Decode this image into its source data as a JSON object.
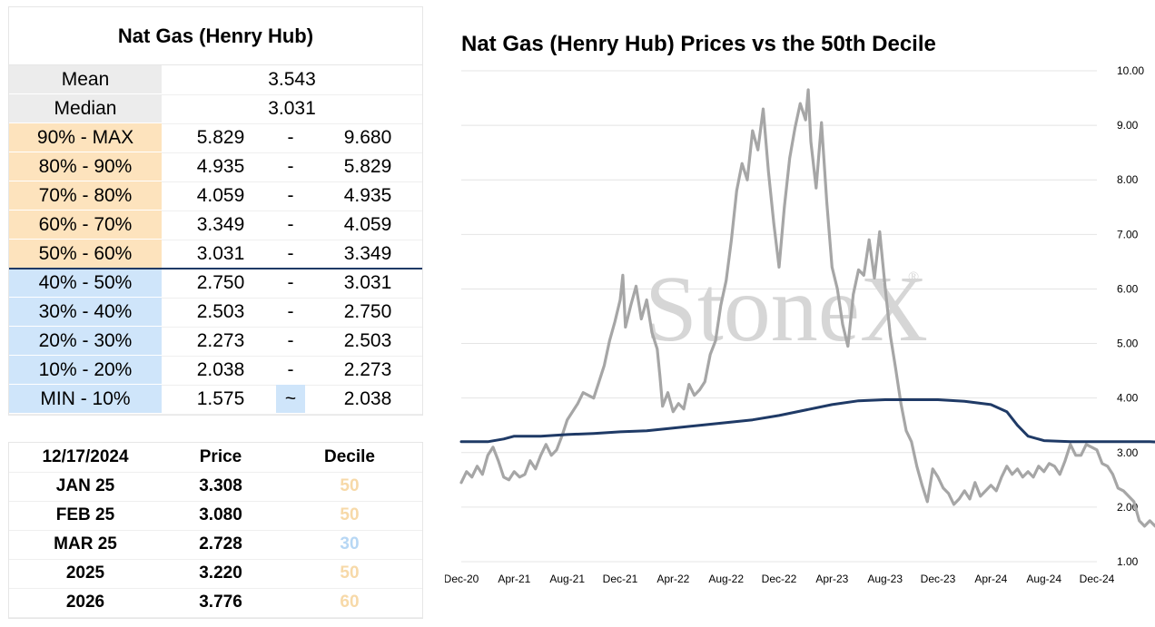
{
  "stats_table": {
    "title": "Nat Gas (Henry Hub)",
    "mean_label": "Mean",
    "mean_value": "3.543",
    "median_label": "Median",
    "median_value": "3.031",
    "deciles": [
      {
        "label": "90% - MAX",
        "low": "5.829",
        "sep": "-",
        "high": "9.680"
      },
      {
        "label": "80% - 90%",
        "low": "4.935",
        "sep": "-",
        "high": "5.829"
      },
      {
        "label": "70% - 80%",
        "low": "4.059",
        "sep": "-",
        "high": "4.935"
      },
      {
        "label": "60% - 70%",
        "low": "3.349",
        "sep": "-",
        "high": "4.059"
      },
      {
        "label": "50% - 60%",
        "low": "3.031",
        "sep": "-",
        "high": "3.349"
      },
      {
        "label": "40% - 50%",
        "low": "2.750",
        "sep": "-",
        "high": "3.031"
      },
      {
        "label": "30% - 40%",
        "low": "2.503",
        "sep": "-",
        "high": "2.750"
      },
      {
        "label": "20% - 30%",
        "low": "2.273",
        "sep": "-",
        "high": "2.503"
      },
      {
        "label": "10% - 20%",
        "low": "2.038",
        "sep": "-",
        "high": "2.273"
      },
      {
        "label": "MIN - 10%",
        "low": "1.575",
        "sep": "~",
        "high": "2.038"
      }
    ]
  },
  "price_table": {
    "headers": [
      "12/17/2024",
      "Price",
      "Decile"
    ],
    "rows": [
      {
        "contract": "JAN 25",
        "price": "3.308",
        "decile": "50"
      },
      {
        "contract": "FEB 25",
        "price": "3.080",
        "decile": "50"
      },
      {
        "contract": "MAR 25",
        "price": "2.728",
        "decile": "30"
      },
      {
        "contract": "2025",
        "price": "3.220",
        "decile": "50"
      },
      {
        "contract": "2026",
        "price": "3.776",
        "decile": "60"
      }
    ]
  },
  "colors": {
    "upper_decile": "#fde3bd",
    "lower_decile": "#cfe5fa",
    "label_gray": "#ececec",
    "decile_orange_text": "#f7d9a8",
    "decile_blue_text": "#b7d7f4",
    "price_line": "#a6a6a6",
    "median_line": "#1f3a66",
    "divider": "#1f3a66"
  },
  "chart_data": {
    "type": "line",
    "title": "Nat Gas (Henry Hub) Prices vs the 50th Decile",
    "watermark": "StoneX",
    "watermark_mark": "®",
    "xlabel": "",
    "ylabel": "",
    "x_tick_labels": [
      "Dec-20",
      "Apr-21",
      "Aug-21",
      "Dec-21",
      "Apr-22",
      "Aug-22",
      "Dec-22",
      "Apr-23",
      "Aug-23",
      "Dec-23",
      "Apr-24",
      "Aug-24",
      "Dec-24"
    ],
    "y_tick_labels": [
      "1.00",
      "2.00",
      "3.00",
      "4.00",
      "5.00",
      "6.00",
      "7.00",
      "8.00",
      "9.00",
      "10.00"
    ],
    "ylim": [
      1,
      10
    ],
    "y_axis_side": "right",
    "grid": true,
    "legend": false,
    "series": [
      {
        "key": "price",
        "values": [
          [
            0,
            2.45
          ],
          [
            0.1,
            2.65
          ],
          [
            0.2,
            2.55
          ],
          [
            0.3,
            2.75
          ],
          [
            0.4,
            2.6
          ],
          [
            0.5,
            2.95
          ],
          [
            0.6,
            3.1
          ],
          [
            0.7,
            2.85
          ],
          [
            0.8,
            2.55
          ],
          [
            0.9,
            2.5
          ],
          [
            1.0,
            2.65
          ],
          [
            1.1,
            2.55
          ],
          [
            1.2,
            2.6
          ],
          [
            1.3,
            2.85
          ],
          [
            1.4,
            2.7
          ],
          [
            1.5,
            2.95
          ],
          [
            1.6,
            3.15
          ],
          [
            1.7,
            2.95
          ],
          [
            1.8,
            3.05
          ],
          [
            1.9,
            3.3
          ],
          [
            2.0,
            3.6
          ],
          [
            2.1,
            3.75
          ],
          [
            2.2,
            3.9
          ],
          [
            2.3,
            4.1
          ],
          [
            2.4,
            4.05
          ],
          [
            2.5,
            4.0
          ],
          [
            2.6,
            4.3
          ],
          [
            2.7,
            4.6
          ],
          [
            2.8,
            5.05
          ],
          [
            2.9,
            5.4
          ],
          [
            3.0,
            5.8
          ],
          [
            3.05,
            6.25
          ],
          [
            3.1,
            5.3
          ],
          [
            3.2,
            5.7
          ],
          [
            3.3,
            6.05
          ],
          [
            3.4,
            5.45
          ],
          [
            3.5,
            5.8
          ],
          [
            3.6,
            5.2
          ],
          [
            3.7,
            4.9
          ],
          [
            3.75,
            4.4
          ],
          [
            3.8,
            3.85
          ],
          [
            3.9,
            4.1
          ],
          [
            4.0,
            3.75
          ],
          [
            4.1,
            3.9
          ],
          [
            4.2,
            3.8
          ],
          [
            4.3,
            4.25
          ],
          [
            4.4,
            4.05
          ],
          [
            4.5,
            4.15
          ],
          [
            4.6,
            4.3
          ],
          [
            4.7,
            4.8
          ],
          [
            4.8,
            5.05
          ],
          [
            4.9,
            5.7
          ],
          [
            5.0,
            6.15
          ],
          [
            5.1,
            6.9
          ],
          [
            5.2,
            7.8
          ],
          [
            5.3,
            8.3
          ],
          [
            5.4,
            8.0
          ],
          [
            5.5,
            8.9
          ],
          [
            5.6,
            8.55
          ],
          [
            5.7,
            9.3
          ],
          [
            5.8,
            8.15
          ],
          [
            5.9,
            7.2
          ],
          [
            6.0,
            6.4
          ],
          [
            6.1,
            7.5
          ],
          [
            6.2,
            8.4
          ],
          [
            6.3,
            8.95
          ],
          [
            6.4,
            9.4
          ],
          [
            6.5,
            9.1
          ],
          [
            6.55,
            9.65
          ],
          [
            6.6,
            8.7
          ],
          [
            6.7,
            7.85
          ],
          [
            6.8,
            9.05
          ],
          [
            6.9,
            7.6
          ],
          [
            7.0,
            6.4
          ],
          [
            7.1,
            6.0
          ],
          [
            7.2,
            5.35
          ],
          [
            7.3,
            4.95
          ],
          [
            7.4,
            5.9
          ],
          [
            7.5,
            6.35
          ],
          [
            7.6,
            6.25
          ],
          [
            7.7,
            6.9
          ],
          [
            7.8,
            6.2
          ],
          [
            7.9,
            7.05
          ],
          [
            8.0,
            6.05
          ],
          [
            8.1,
            5.15
          ],
          [
            8.2,
            4.55
          ],
          [
            8.3,
            3.9
          ],
          [
            8.4,
            3.4
          ],
          [
            8.5,
            3.2
          ],
          [
            8.6,
            2.75
          ],
          [
            8.7,
            2.4
          ],
          [
            8.8,
            2.1
          ],
          [
            8.9,
            2.7
          ],
          [
            9.0,
            2.55
          ],
          [
            9.1,
            2.35
          ],
          [
            9.2,
            2.25
          ],
          [
            9.3,
            2.05
          ],
          [
            9.4,
            2.15
          ],
          [
            9.5,
            2.3
          ],
          [
            9.6,
            2.15
          ],
          [
            9.7,
            2.45
          ],
          [
            9.8,
            2.2
          ],
          [
            9.9,
            2.3
          ],
          [
            10.0,
            2.4
          ],
          [
            10.1,
            2.3
          ],
          [
            10.2,
            2.55
          ],
          [
            10.3,
            2.75
          ],
          [
            10.4,
            2.6
          ],
          [
            10.5,
            2.7
          ],
          [
            10.6,
            2.55
          ],
          [
            10.7,
            2.65
          ],
          [
            10.8,
            2.55
          ],
          [
            10.9,
            2.75
          ],
          [
            11.0,
            2.65
          ],
          [
            11.1,
            2.8
          ],
          [
            11.2,
            2.75
          ],
          [
            11.3,
            2.6
          ],
          [
            11.4,
            2.85
          ],
          [
            11.5,
            3.15
          ],
          [
            11.6,
            2.95
          ],
          [
            11.7,
            2.95
          ],
          [
            11.8,
            3.15
          ],
          [
            11.9,
            3.1
          ],
          [
            12.0,
            3.05
          ],
          [
            12.1,
            2.8
          ],
          [
            12.2,
            2.75
          ],
          [
            12.3,
            2.6
          ],
          [
            12.4,
            2.35
          ],
          [
            12.5,
            2.3
          ],
          [
            12.6,
            2.2
          ],
          [
            12.7,
            2.1
          ],
          [
            12.8,
            1.75
          ],
          [
            12.9,
            1.65
          ],
          [
            13.0,
            1.75
          ],
          [
            13.1,
            1.65
          ],
          [
            13.2,
            1.85
          ],
          [
            13.3,
            1.7
          ],
          [
            13.4,
            1.65
          ],
          [
            13.5,
            1.75
          ],
          [
            13.6,
            1.6
          ],
          [
            13.7,
            1.75
          ],
          [
            13.8,
            2.05
          ],
          [
            13.9,
            2.15
          ],
          [
            14.0,
            2.4
          ],
          [
            14.1,
            2.65
          ],
          [
            14.2,
            2.75
          ],
          [
            14.3,
            2.9
          ],
          [
            14.4,
            2.75
          ],
          [
            14.5,
            2.65
          ],
          [
            14.6,
            2.55
          ],
          [
            14.7,
            2.45
          ],
          [
            14.8,
            2.25
          ],
          [
            14.9,
            2.1
          ],
          [
            15.0,
            2.0
          ],
          [
            15.1,
            2.15
          ],
          [
            15.2,
            2.05
          ],
          [
            15.3,
            2.2
          ],
          [
            15.4,
            2.1
          ],
          [
            15.5,
            1.95
          ],
          [
            15.6,
            2.2
          ],
          [
            15.7,
            2.4
          ],
          [
            15.8,
            2.55
          ],
          [
            15.9,
            2.75
          ],
          [
            16.0,
            2.85
          ],
          [
            16.1,
            2.6
          ],
          [
            16.2,
            2.35
          ],
          [
            16.3,
            2.6
          ],
          [
            16.4,
            2.85
          ],
          [
            16.5,
            2.95
          ],
          [
            16.6,
            3.25
          ],
          [
            16.7,
            3.1
          ],
          [
            16.8,
            3.35
          ],
          [
            16.9,
            3.25
          ],
          [
            17.0,
            3.3
          ]
        ]
      },
      {
        "key": "50th_decile",
        "values": [
          [
            0,
            3.2
          ],
          [
            0.5,
            3.2
          ],
          [
            0.8,
            3.25
          ],
          [
            1.0,
            3.3
          ],
          [
            1.5,
            3.3
          ],
          [
            2.0,
            3.33
          ],
          [
            2.5,
            3.35
          ],
          [
            3.0,
            3.38
          ],
          [
            3.5,
            3.4
          ],
          [
            4.0,
            3.45
          ],
          [
            4.5,
            3.5
          ],
          [
            5.0,
            3.55
          ],
          [
            5.5,
            3.6
          ],
          [
            6.0,
            3.68
          ],
          [
            6.5,
            3.78
          ],
          [
            7.0,
            3.88
          ],
          [
            7.5,
            3.95
          ],
          [
            8.0,
            3.97
          ],
          [
            8.5,
            3.97
          ],
          [
            9.0,
            3.97
          ],
          [
            9.5,
            3.94
          ],
          [
            10.0,
            3.88
          ],
          [
            10.3,
            3.75
          ],
          [
            10.5,
            3.5
          ],
          [
            10.7,
            3.3
          ],
          [
            11.0,
            3.22
          ],
          [
            11.5,
            3.2
          ],
          [
            12.0,
            3.2
          ],
          [
            13.0,
            3.2
          ],
          [
            13.5,
            3.18
          ],
          [
            14.0,
            3.18
          ],
          [
            14.5,
            3.2
          ],
          [
            15.0,
            3.2
          ],
          [
            15.5,
            3.18
          ],
          [
            16.0,
            3.15
          ],
          [
            16.5,
            3.1
          ],
          [
            17.0,
            3.05
          ]
        ]
      }
    ]
  }
}
